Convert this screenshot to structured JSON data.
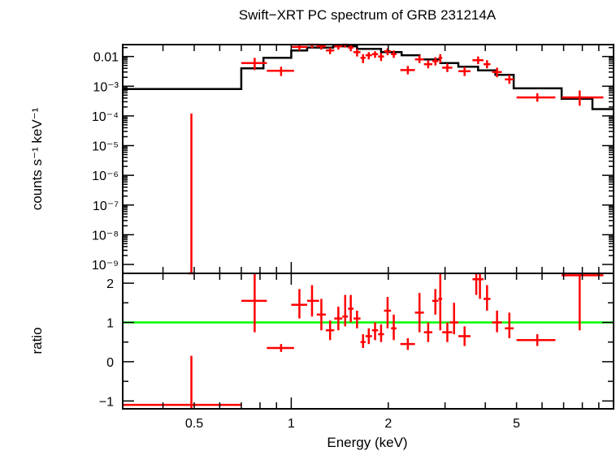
{
  "chart_data": {
    "type": "spectrum",
    "title": "Swift−XRT PC spectrum of GRB 231214A",
    "xlabel": "Energy (keV)",
    "xscale": "log",
    "xlim": [
      0.3,
      10
    ],
    "xticks": [
      {
        "value": 0.5,
        "label": "0.5"
      },
      {
        "value": 1,
        "label": "1"
      },
      {
        "value": 2,
        "label": "2"
      },
      {
        "value": 5,
        "label": "5"
      }
    ],
    "colors": {
      "data": "#ff0000",
      "model": "#000000",
      "unity": "#00ff00",
      "axes": "#000000"
    },
    "upper": {
      "ylabel": "counts s⁻¹ keV⁻¹",
      "yscale": "log",
      "ylim_log10": [
        -9.3,
        -1.6
      ],
      "yticks": [
        {
          "value": 0.01,
          "label": "0.01"
        },
        {
          "value": 0.001,
          "label": "10⁻³"
        },
        {
          "value": 0.0001,
          "label": "10⁻⁴"
        },
        {
          "value": 1e-05,
          "label": "10⁻⁵"
        },
        {
          "value": 1e-06,
          "label": "10⁻⁶"
        },
        {
          "value": 1e-07,
          "label": "10⁻⁷"
        },
        {
          "value": 1e-08,
          "label": "10⁻⁸"
        },
        {
          "value": 1e-09,
          "label": "10⁻⁹"
        }
      ],
      "data": [
        {
          "x": 0.49,
          "xlo": 0.48,
          "xhi": 0.5,
          "y": 1e-12,
          "ylo": 1e-12,
          "yhi": 0.00012
        },
        {
          "x": 0.77,
          "xlo": 0.7,
          "xhi": 0.84,
          "y": 0.006,
          "ylo": 0.0035,
          "yhi": 0.009
        },
        {
          "x": 0.93,
          "xlo": 0.84,
          "xhi": 1.02,
          "y": 0.0033,
          "ylo": 0.0022,
          "yhi": 0.0045
        },
        {
          "x": 1.06,
          "xlo": 1.0,
          "xhi": 1.12,
          "y": 0.021,
          "ylo": 0.016,
          "yhi": 0.026
        },
        {
          "x": 1.16,
          "xlo": 1.12,
          "xhi": 1.22,
          "y": 0.025,
          "ylo": 0.019,
          "yhi": 0.031
        },
        {
          "x": 1.24,
          "xlo": 1.2,
          "xhi": 1.28,
          "y": 0.022,
          "ylo": 0.017,
          "yhi": 0.028
        },
        {
          "x": 1.32,
          "xlo": 1.28,
          "xhi": 1.36,
          "y": 0.016,
          "ylo": 0.012,
          "yhi": 0.02
        },
        {
          "x": 1.4,
          "xlo": 1.36,
          "xhi": 1.44,
          "y": 0.022,
          "ylo": 0.017,
          "yhi": 0.027
        },
        {
          "x": 1.47,
          "xlo": 1.44,
          "xhi": 1.5,
          "y": 0.025,
          "ylo": 0.02,
          "yhi": 0.032
        },
        {
          "x": 1.53,
          "xlo": 1.5,
          "xhi": 1.56,
          "y": 0.02,
          "ylo": 0.015,
          "yhi": 0.026
        },
        {
          "x": 1.6,
          "xlo": 1.56,
          "xhi": 1.64,
          "y": 0.014,
          "ylo": 0.01,
          "yhi": 0.018
        },
        {
          "x": 1.67,
          "xlo": 1.64,
          "xhi": 1.7,
          "y": 0.009,
          "ylo": 0.006,
          "yhi": 0.012
        },
        {
          "x": 1.74,
          "xlo": 1.7,
          "xhi": 1.78,
          "y": 0.011,
          "ylo": 0.008,
          "yhi": 0.014
        },
        {
          "x": 1.82,
          "xlo": 1.78,
          "xhi": 1.86,
          "y": 0.012,
          "ylo": 0.009,
          "yhi": 0.015
        },
        {
          "x": 1.9,
          "xlo": 1.86,
          "xhi": 1.94,
          "y": 0.01,
          "ylo": 0.007,
          "yhi": 0.013
        },
        {
          "x": 1.99,
          "xlo": 1.94,
          "xhi": 2.04,
          "y": 0.015,
          "ylo": 0.011,
          "yhi": 0.019
        },
        {
          "x": 2.08,
          "xlo": 2.04,
          "xhi": 2.12,
          "y": 0.012,
          "ylo": 0.009,
          "yhi": 0.016
        },
        {
          "x": 2.3,
          "xlo": 2.18,
          "xhi": 2.42,
          "y": 0.0035,
          "ylo": 0.0025,
          "yhi": 0.0048
        },
        {
          "x": 2.5,
          "xlo": 2.42,
          "xhi": 2.58,
          "y": 0.008,
          "ylo": 0.006,
          "yhi": 0.011
        },
        {
          "x": 2.66,
          "xlo": 2.58,
          "xhi": 2.74,
          "y": 0.0055,
          "ylo": 0.004,
          "yhi": 0.0075
        },
        {
          "x": 2.8,
          "xlo": 2.74,
          "xhi": 2.86,
          "y": 0.007,
          "ylo": 0.005,
          "yhi": 0.0095
        },
        {
          "x": 2.9,
          "xlo": 2.86,
          "xhi": 2.94,
          "y": 0.009,
          "ylo": 0.006,
          "yhi": 0.012
        },
        {
          "x": 3.05,
          "xlo": 2.94,
          "xhi": 3.16,
          "y": 0.0042,
          "ylo": 0.003,
          "yhi": 0.0058
        },
        {
          "x": 3.45,
          "xlo": 3.3,
          "xhi": 3.6,
          "y": 0.0032,
          "ylo": 0.0022,
          "yhi": 0.0045
        },
        {
          "x": 3.8,
          "xlo": 3.65,
          "xhi": 3.95,
          "y": 0.0075,
          "ylo": 0.0055,
          "yhi": 0.01
        },
        {
          "x": 4.05,
          "xlo": 3.95,
          "xhi": 4.15,
          "y": 0.0055,
          "ylo": 0.004,
          "yhi": 0.0075
        },
        {
          "x": 4.35,
          "xlo": 4.2,
          "xhi": 4.5,
          "y": 0.003,
          "ylo": 0.002,
          "yhi": 0.0042
        },
        {
          "x": 4.75,
          "xlo": 4.6,
          "xhi": 4.9,
          "y": 0.0017,
          "ylo": 0.0012,
          "yhi": 0.0024
        },
        {
          "x": 5.8,
          "xlo": 5.0,
          "xhi": 6.6,
          "y": 0.00042,
          "ylo": 0.0003,
          "yhi": 0.00058
        },
        {
          "x": 7.85,
          "xlo": 6.9,
          "xhi": 9.3,
          "y": 0.00042,
          "ylo": 0.00022,
          "yhi": 0.00072
        }
      ],
      "model_steps": [
        {
          "x0": 0.3,
          "x1": 0.7,
          "y": 0.0008
        },
        {
          "x0": 0.7,
          "x1": 0.82,
          "y": 0.004
        },
        {
          "x0": 0.82,
          "x1": 1.0,
          "y": 0.009
        },
        {
          "x0": 1.0,
          "x1": 1.12,
          "y": 0.016
        },
        {
          "x0": 1.12,
          "x1": 1.35,
          "y": 0.02
        },
        {
          "x0": 1.35,
          "x1": 1.6,
          "y": 0.022
        },
        {
          "x0": 1.6,
          "x1": 1.9,
          "y": 0.018
        },
        {
          "x0": 1.9,
          "x1": 2.2,
          "y": 0.014
        },
        {
          "x0": 2.2,
          "x1": 2.5,
          "y": 0.011
        },
        {
          "x0": 2.5,
          "x1": 2.9,
          "y": 0.008
        },
        {
          "x0": 2.9,
          "x1": 3.3,
          "y": 0.006
        },
        {
          "x0": 3.3,
          "x1": 3.8,
          "y": 0.0045
        },
        {
          "x0": 3.8,
          "x1": 4.3,
          "y": 0.0034
        },
        {
          "x0": 4.3,
          "x1": 4.9,
          "y": 0.0024
        },
        {
          "x0": 4.9,
          "x1": 6.9,
          "y": 0.00085
        },
        {
          "x0": 6.9,
          "x1": 8.6,
          "y": 0.00038
        },
        {
          "x0": 8.6,
          "x1": 10.0,
          "y": 0.00017
        }
      ]
    },
    "lower": {
      "ylabel": "ratio",
      "ylim": [
        -1.2,
        2.25
      ],
      "yticks": [
        {
          "value": 2,
          "label": "2"
        },
        {
          "value": 1,
          "label": "1"
        },
        {
          "value": 0,
          "label": "0"
        },
        {
          "value": -1,
          "label": "−1"
        }
      ],
      "unity": 1,
      "data": [
        {
          "x": 0.49,
          "xlo": 0.3,
          "xhi": 0.7,
          "y": -1.1,
          "ylo": -1.2,
          "yhi": 0.15
        },
        {
          "x": 0.77,
          "xlo": 0.7,
          "xhi": 0.84,
          "y": 1.55,
          "ylo": 0.75,
          "yhi": 2.25
        },
        {
          "x": 0.93,
          "xlo": 0.84,
          "xhi": 1.02,
          "y": 0.35,
          "ylo": 0.25,
          "yhi": 0.45
        },
        {
          "x": 1.06,
          "xlo": 1.0,
          "xhi": 1.12,
          "y": 1.45,
          "ylo": 1.1,
          "yhi": 1.85
        },
        {
          "x": 1.16,
          "xlo": 1.12,
          "xhi": 1.22,
          "y": 1.55,
          "ylo": 1.15,
          "yhi": 1.95
        },
        {
          "x": 1.24,
          "xlo": 1.2,
          "xhi": 1.28,
          "y": 1.2,
          "ylo": 0.8,
          "yhi": 1.6
        },
        {
          "x": 1.32,
          "xlo": 1.28,
          "xhi": 1.36,
          "y": 0.8,
          "ylo": 0.55,
          "yhi": 1.05
        },
        {
          "x": 1.4,
          "xlo": 1.36,
          "xhi": 1.44,
          "y": 1.1,
          "ylo": 0.8,
          "yhi": 1.4
        },
        {
          "x": 1.47,
          "xlo": 1.44,
          "xhi": 1.5,
          "y": 1.15,
          "ylo": 0.9,
          "yhi": 1.7
        },
        {
          "x": 1.53,
          "xlo": 1.5,
          "xhi": 1.56,
          "y": 1.35,
          "ylo": 1.0,
          "yhi": 1.7
        },
        {
          "x": 1.6,
          "xlo": 1.56,
          "xhi": 1.64,
          "y": 1.1,
          "ylo": 0.85,
          "yhi": 1.3
        },
        {
          "x": 1.67,
          "xlo": 1.64,
          "xhi": 1.7,
          "y": 0.5,
          "ylo": 0.35,
          "yhi": 0.7
        },
        {
          "x": 1.74,
          "xlo": 1.7,
          "xhi": 1.78,
          "y": 0.65,
          "ylo": 0.45,
          "yhi": 0.85
        },
        {
          "x": 1.82,
          "xlo": 1.78,
          "xhi": 1.86,
          "y": 0.8,
          "ylo": 0.55,
          "yhi": 1.0
        },
        {
          "x": 1.9,
          "xlo": 1.86,
          "xhi": 1.94,
          "y": 0.7,
          "ylo": 0.5,
          "yhi": 0.95
        },
        {
          "x": 1.99,
          "xlo": 1.94,
          "xhi": 2.04,
          "y": 1.3,
          "ylo": 0.85,
          "yhi": 1.65
        },
        {
          "x": 2.08,
          "xlo": 2.04,
          "xhi": 2.12,
          "y": 0.85,
          "ylo": 0.55,
          "yhi": 1.2
        },
        {
          "x": 2.3,
          "xlo": 2.18,
          "xhi": 2.42,
          "y": 0.45,
          "ylo": 0.3,
          "yhi": 0.6
        },
        {
          "x": 2.5,
          "xlo": 2.42,
          "xhi": 2.58,
          "y": 1.25,
          "ylo": 0.75,
          "yhi": 1.75
        },
        {
          "x": 2.66,
          "xlo": 2.58,
          "xhi": 2.74,
          "y": 0.75,
          "ylo": 0.5,
          "yhi": 1.0
        },
        {
          "x": 2.8,
          "xlo": 2.74,
          "xhi": 2.86,
          "y": 1.55,
          "ylo": 1.2,
          "yhi": 1.85
        },
        {
          "x": 2.9,
          "xlo": 2.86,
          "xhi": 2.94,
          "y": 1.6,
          "ylo": 0.8,
          "yhi": 2.25
        },
        {
          "x": 3.05,
          "xlo": 2.94,
          "xhi": 3.16,
          "y": 0.75,
          "ylo": 0.5,
          "yhi": 1.0
        },
        {
          "x": 3.2,
          "xlo": 3.1,
          "xhi": 3.3,
          "y": 1.0,
          "ylo": 0.7,
          "yhi": 1.5
        },
        {
          "x": 3.45,
          "xlo": 3.3,
          "xhi": 3.6,
          "y": 0.65,
          "ylo": 0.4,
          "yhi": 0.9
        },
        {
          "x": 3.75,
          "xlo": 3.65,
          "xhi": 3.85,
          "y": 2.1,
          "ylo": 1.7,
          "yhi": 2.25
        },
        {
          "x": 3.85,
          "xlo": 3.8,
          "xhi": 3.95,
          "y": 2.1,
          "ylo": 1.6,
          "yhi": 2.25
        },
        {
          "x": 4.05,
          "xlo": 3.95,
          "xhi": 4.15,
          "y": 1.6,
          "ylo": 1.3,
          "yhi": 1.95
        },
        {
          "x": 4.35,
          "xlo": 4.2,
          "xhi": 4.5,
          "y": 1.0,
          "ylo": 0.75,
          "yhi": 1.3
        },
        {
          "x": 4.75,
          "xlo": 4.6,
          "xhi": 4.9,
          "y": 0.85,
          "ylo": 0.6,
          "yhi": 1.25
        },
        {
          "x": 5.8,
          "xlo": 5.0,
          "xhi": 6.6,
          "y": 0.55,
          "ylo": 0.4,
          "yhi": 0.7
        },
        {
          "x": 7.85,
          "xlo": 6.9,
          "xhi": 9.3,
          "y": 2.2,
          "ylo": 0.8,
          "yhi": 2.25
        }
      ]
    }
  }
}
